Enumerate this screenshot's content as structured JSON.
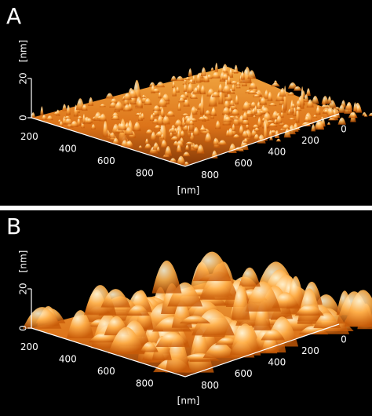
{
  "panels": [
    {
      "label": "A",
      "z_unit": "[nm]",
      "z_ticks": [
        "20",
        "0"
      ],
      "left_axis_ticks": [
        "200",
        "400",
        "600",
        "800"
      ],
      "right_axis_ticks": [
        "0",
        "200",
        "400",
        "600",
        "800"
      ],
      "xy_unit": "[nm]"
    },
    {
      "label": "B",
      "z_unit": "[nm]",
      "z_ticks": [
        "20",
        "0"
      ],
      "left_axis_ticks": [
        "200",
        "400",
        "600",
        "800"
      ],
      "right_axis_ticks": [
        "0",
        "200",
        "400",
        "600",
        "800"
      ],
      "xy_unit": "[nm]"
    }
  ]
}
